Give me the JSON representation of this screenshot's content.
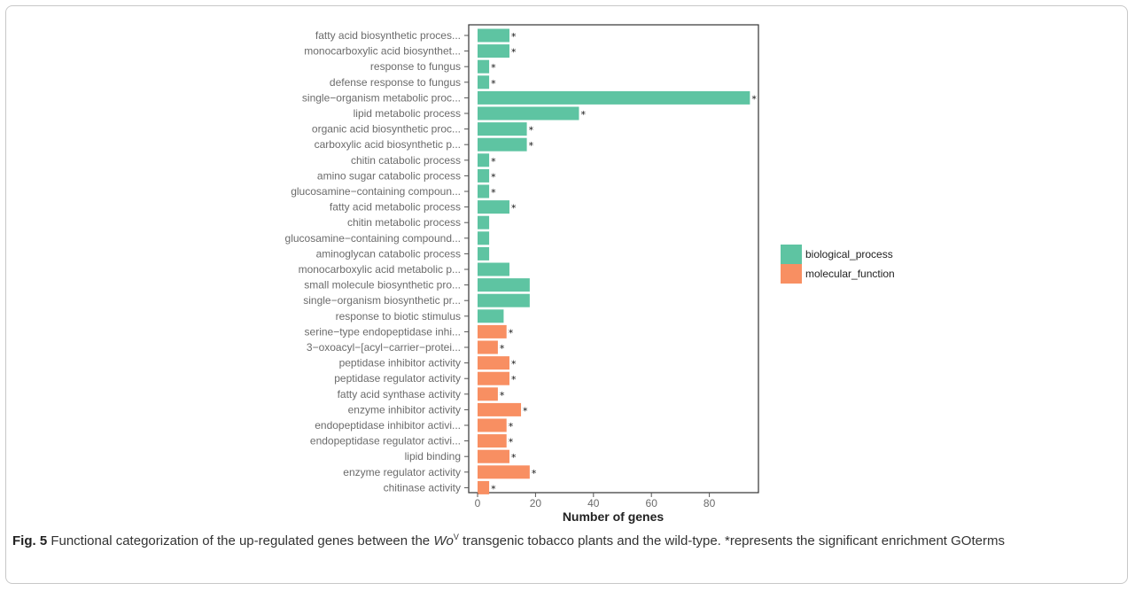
{
  "chart_data": {
    "type": "bar",
    "orientation": "horizontal",
    "xlabel": "Number of genes",
    "xlim": [
      0,
      96
    ],
    "xticks": [
      0,
      20,
      40,
      60,
      80
    ],
    "grid": false,
    "legend_position": "right",
    "series": [
      {
        "name": "biological_process",
        "color": "#5ec4a2"
      },
      {
        "name": "molecular_function",
        "color": "#f88f62"
      }
    ],
    "categories": [
      {
        "label": "fatty acid biosynthetic proces...",
        "value": 11,
        "category": "biological_process",
        "significant": true
      },
      {
        "label": "monocarboxylic acid biosynthet...",
        "value": 11,
        "category": "biological_process",
        "significant": true
      },
      {
        "label": "response to fungus",
        "value": 4,
        "category": "biological_process",
        "significant": true
      },
      {
        "label": "defense response to fungus",
        "value": 4,
        "category": "biological_process",
        "significant": true
      },
      {
        "label": "single−organism metabolic proc...",
        "value": 94,
        "category": "biological_process",
        "significant": true
      },
      {
        "label": "lipid metabolic process",
        "value": 35,
        "category": "biological_process",
        "significant": true
      },
      {
        "label": "organic acid biosynthetic proc...",
        "value": 17,
        "category": "biological_process",
        "significant": true
      },
      {
        "label": "carboxylic acid biosynthetic p...",
        "value": 17,
        "category": "biological_process",
        "significant": true
      },
      {
        "label": "chitin catabolic process",
        "value": 4,
        "category": "biological_process",
        "significant": true
      },
      {
        "label": "amino sugar catabolic process",
        "value": 4,
        "category": "biological_process",
        "significant": true
      },
      {
        "label": "glucosamine−containing compoun...",
        "value": 4,
        "category": "biological_process",
        "significant": true
      },
      {
        "label": "fatty acid metabolic process",
        "value": 11,
        "category": "biological_process",
        "significant": true
      },
      {
        "label": "chitin metabolic process",
        "value": 4,
        "category": "biological_process",
        "significant": false
      },
      {
        "label": "glucosamine−containing compound...",
        "value": 4,
        "category": "biological_process",
        "significant": false
      },
      {
        "label": "aminoglycan catabolic process",
        "value": 4,
        "category": "biological_process",
        "significant": false
      },
      {
        "label": "monocarboxylic acid metabolic p...",
        "value": 11,
        "category": "biological_process",
        "significant": false
      },
      {
        "label": "small molecule biosynthetic pro...",
        "value": 18,
        "category": "biological_process",
        "significant": false
      },
      {
        "label": "single−organism biosynthetic pr...",
        "value": 18,
        "category": "biological_process",
        "significant": false
      },
      {
        "label": "response to biotic stimulus",
        "value": 9,
        "category": "biological_process",
        "significant": false
      },
      {
        "label": "serine−type endopeptidase inhi...",
        "value": 10,
        "category": "molecular_function",
        "significant": true
      },
      {
        "label": "3−oxoacyl−[acyl−carrier−protei...",
        "value": 7,
        "category": "molecular_function",
        "significant": true
      },
      {
        "label": "peptidase inhibitor activity",
        "value": 11,
        "category": "molecular_function",
        "significant": true
      },
      {
        "label": "peptidase regulator activity",
        "value": 11,
        "category": "molecular_function",
        "significant": true
      },
      {
        "label": "fatty acid synthase activity",
        "value": 7,
        "category": "molecular_function",
        "significant": true
      },
      {
        "label": "enzyme inhibitor activity",
        "value": 15,
        "category": "molecular_function",
        "significant": true
      },
      {
        "label": "endopeptidase inhibitor activi...",
        "value": 10,
        "category": "molecular_function",
        "significant": true
      },
      {
        "label": "endopeptidase regulator activi...",
        "value": 10,
        "category": "molecular_function",
        "significant": true
      },
      {
        "label": "lipid binding",
        "value": 11,
        "category": "molecular_function",
        "significant": true
      },
      {
        "label": "enzyme regulator activity",
        "value": 18,
        "category": "molecular_function",
        "significant": true
      },
      {
        "label": "chitinase activity",
        "value": 4,
        "category": "molecular_function",
        "significant": true
      }
    ],
    "significance_marker": "*"
  },
  "caption": {
    "fig_label": "Fig. 5",
    "text_before": " Functional categorization of the up-regulated genes between the ",
    "symbol": "Wo",
    "superscript": "V",
    "text_after": " transgenic tobacco plants and the wild-type. *represents the significant enrichment GOterms"
  }
}
